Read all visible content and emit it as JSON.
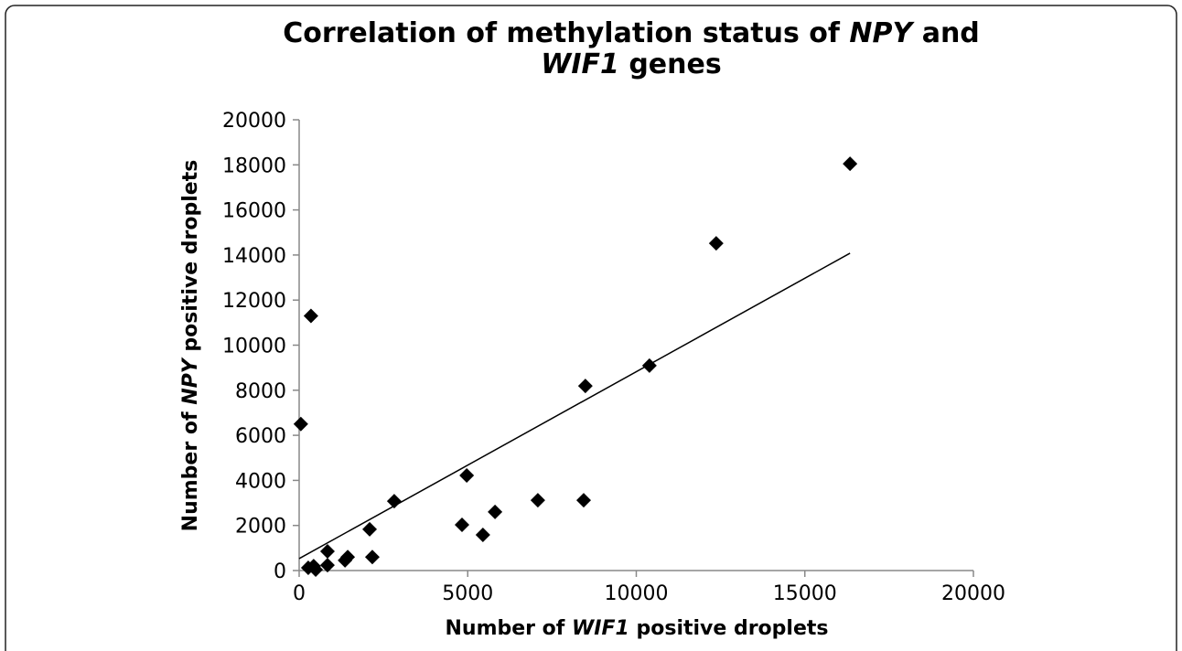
{
  "chart_data": {
    "type": "scatter",
    "title": [
      [
        {
          "text": "Correlation of methylation status of ",
          "italic": false
        },
        {
          "text": "NPY",
          "italic": true
        },
        {
          "text": " and",
          "italic": false
        }
      ],
      [
        {
          "text": "WIF1",
          "italic": true
        },
        {
          "text": " genes",
          "italic": false
        }
      ]
    ],
    "x_label": [
      {
        "text": "Number of ",
        "italic": false
      },
      {
        "text": "WIF1",
        "italic": true
      },
      {
        "text": " positive droplets",
        "italic": false
      }
    ],
    "y_label": [
      {
        "text": "Number of ",
        "italic": false
      },
      {
        "text": "NPY",
        "italic": true
      },
      {
        "text": " positive droplets",
        "italic": false
      }
    ],
    "x": [
      50,
      350,
      270,
      430,
      490,
      840,
      840,
      1360,
      1440,
      2090,
      2170,
      2820,
      4830,
      4970,
      5450,
      5810,
      7080,
      8440,
      8490,
      10390,
      12370,
      16340
    ],
    "values": [
      6500,
      11300,
      120,
      200,
      40,
      240,
      850,
      450,
      600,
      1830,
      600,
      3080,
      2030,
      4220,
      1580,
      2600,
      3120,
      3120,
      8190,
      9090,
      14520,
      18050
    ],
    "color": "#000000",
    "trendline": {
      "x": [
        0,
        16340
      ],
      "values": [
        530,
        14080
      ]
    },
    "xlim": [
      0,
      20000
    ],
    "xticks": [
      0,
      5000,
      10000,
      15000,
      20000
    ],
    "ylim": [
      0,
      20000
    ],
    "yticks": [
      0,
      2000,
      4000,
      6000,
      8000,
      10000,
      12000,
      14000,
      16000,
      18000,
      20000
    ]
  }
}
